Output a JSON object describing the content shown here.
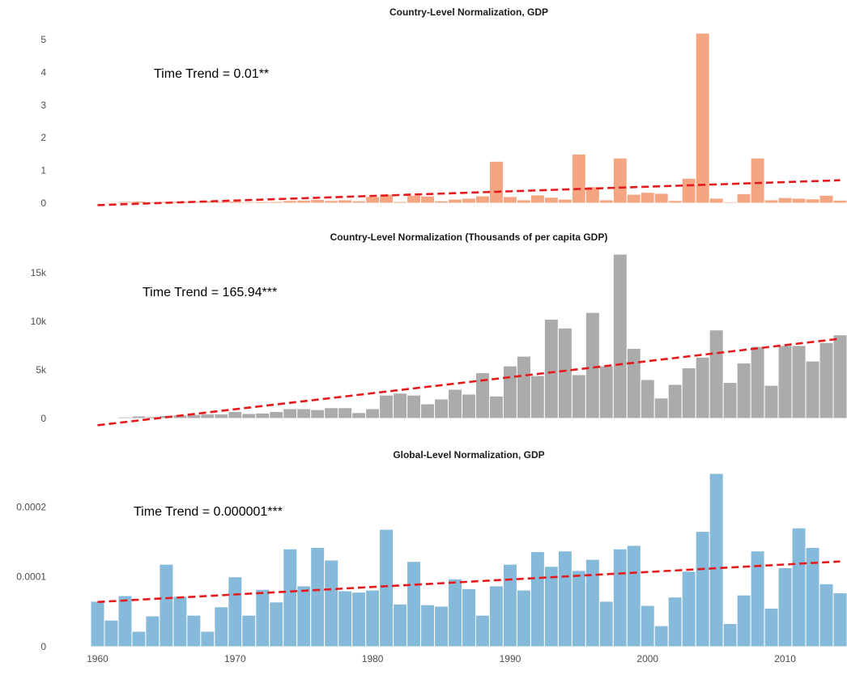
{
  "chart_data": [
    {
      "type": "bar",
      "title": "Country-Level Normalization, GDP",
      "xlabel": "",
      "ylabel": "",
      "annotation": "Time Trend = 0.01**",
      "bar_color": "#F4A582",
      "trend_color": "#E41A1C",
      "x": [
        1960,
        1961,
        1962,
        1963,
        1964,
        1965,
        1966,
        1967,
        1968,
        1969,
        1970,
        1971,
        1972,
        1973,
        1974,
        1975,
        1976,
        1977,
        1978,
        1979,
        1980,
        1981,
        1982,
        1983,
        1984,
        1985,
        1986,
        1987,
        1988,
        1989,
        1990,
        1991,
        1992,
        1993,
        1994,
        1995,
        1996,
        1997,
        1998,
        1999,
        2000,
        2001,
        2002,
        2003,
        2004,
        2005,
        2006,
        2007,
        2008,
        2009,
        2010,
        2011,
        2012,
        2013,
        2014
      ],
      "values": [
        0.02,
        0.03,
        0.05,
        0.06,
        0.04,
        0.05,
        0.06,
        0.05,
        0.07,
        0.05,
        0.06,
        0.04,
        0.05,
        0.05,
        0.08,
        0.09,
        0.11,
        0.08,
        0.1,
        0.07,
        0.2,
        0.27,
        0.05,
        0.24,
        0.22,
        0.07,
        0.12,
        0.15,
        0.22,
        1.28,
        0.2,
        0.1,
        0.25,
        0.18,
        0.12,
        1.5,
        0.5,
        0.1,
        1.38,
        0.27,
        0.33,
        0.3,
        0.08,
        0.76,
        5.2,
        0.15,
        0.04,
        0.29,
        1.38,
        0.1,
        0.17,
        0.15,
        0.13,
        0.24,
        0.09
      ],
      "trend": {
        "x": [
          1960,
          2014
        ],
        "y": [
          -0.06,
          0.7
        ]
      },
      "y_ticks": [
        0,
        1,
        2,
        3,
        4,
        5
      ],
      "y_tick_labels": [
        "0",
        "1",
        "2",
        "3",
        "4",
        "5"
      ],
      "ylim": [
        0,
        5.2
      ],
      "x_ticks": [
        1960,
        1970,
        1980,
        1990,
        2000,
        2010
      ],
      "x_tick_labels": [],
      "grid": false
    },
    {
      "type": "bar",
      "title": "Country-Level Normalization (Thousands of per capita GDP)",
      "xlabel": "",
      "ylabel": "",
      "annotation": "Time Trend = 165.94***",
      "bar_color": "#ABABAB",
      "trend_color": "#E41A1C",
      "x": [
        1960,
        1961,
        1962,
        1963,
        1964,
        1965,
        1966,
        1967,
        1968,
        1969,
        1970,
        1971,
        1972,
        1973,
        1974,
        1975,
        1976,
        1977,
        1978,
        1979,
        1980,
        1981,
        1982,
        1983,
        1984,
        1985,
        1986,
        1987,
        1988,
        1989,
        1990,
        1991,
        1992,
        1993,
        1994,
        1995,
        1996,
        1997,
        1998,
        1999,
        2000,
        2001,
        2002,
        2003,
        2004,
        2005,
        2006,
        2007,
        2008,
        2009,
        2010,
        2011,
        2012,
        2013,
        2014
      ],
      "values": [
        50,
        80,
        150,
        250,
        180,
        300,
        350,
        400,
        450,
        450,
        700,
        500,
        550,
        700,
        1000,
        1000,
        900,
        1100,
        1100,
        600,
        1000,
        2400,
        2600,
        2400,
        1500,
        2000,
        3000,
        2500,
        4700,
        2300,
        5400,
        6400,
        4400,
        10200,
        9300,
        4500,
        10900,
        5400,
        16900,
        7200,
        4000,
        2100,
        3500,
        5200,
        6300,
        9100,
        3700,
        5700,
        7400,
        3400,
        7500,
        7500,
        5900,
        7800,
        8600
      ],
      "trend": {
        "x": [
          1960,
          2014
        ],
        "y": [
          -700,
          8200
        ]
      },
      "y_ticks": [
        0,
        5000,
        10000,
        15000
      ],
      "y_tick_labels": [
        "0",
        "5k",
        "10k",
        "15k"
      ],
      "ylim": [
        0,
        16900
      ],
      "x_ticks": [
        1960,
        1970,
        1980,
        1990,
        2000,
        2010
      ],
      "x_tick_labels": [],
      "grid": false
    },
    {
      "type": "bar",
      "title": "Global-Level Normalization, GDP",
      "xlabel": "",
      "ylabel": "",
      "annotation": "Time Trend = 0.000001***",
      "bar_color": "#86BADA",
      "trend_color": "#E41A1C",
      "x": [
        1960,
        1961,
        1962,
        1963,
        1964,
        1965,
        1966,
        1967,
        1968,
        1969,
        1970,
        1971,
        1972,
        1973,
        1974,
        1975,
        1976,
        1977,
        1978,
        1979,
        1980,
        1981,
        1982,
        1983,
        1984,
        1985,
        1986,
        1987,
        1988,
        1989,
        1990,
        1991,
        1992,
        1993,
        1994,
        1995,
        1996,
        1997,
        1998,
        1999,
        2000,
        2001,
        2002,
        2003,
        2004,
        2005,
        2006,
        2007,
        2008,
        2009,
        2010,
        2011,
        2012,
        2013,
        2014
      ],
      "values": [
        6.5e-05,
        3.8e-05,
        7.3e-05,
        2.2e-05,
        4.4e-05,
        0.000118,
        7.2e-05,
        4.5e-05,
        2.2e-05,
        5.7e-05,
        0.0001,
        4.5e-05,
        8.2e-05,
        6.4e-05,
        0.00014,
        8.7e-05,
        0.000142,
        0.000124,
        8e-05,
        7.8e-05,
        8.1e-05,
        0.000168,
        6.1e-05,
        0.000122,
        6e-05,
        5.8e-05,
        9.7e-05,
        8.3e-05,
        4.5e-05,
        8.7e-05,
        0.000118,
        8.1e-05,
        0.000136,
        0.000115,
        0.000137,
        0.000109,
        0.000125,
        6.5e-05,
        0.00014,
        0.000145,
        5.9e-05,
        3e-05,
        7.1e-05,
        0.000108,
        0.000165,
        0.000248,
        3.3e-05,
        7.4e-05,
        0.000137,
        5.5e-05,
        0.000113,
        0.00017,
        0.000142,
        9e-05,
        7.7e-05
      ],
      "trend": {
        "x": [
          1960,
          2014
        ],
        "y": [
          6.4e-05,
          0.000122
        ]
      },
      "y_ticks": [
        0,
        0.0001,
        0.0002
      ],
      "y_tick_labels": [
        "0",
        "0.0001",
        "0.0002"
      ],
      "ylim": [
        0,
        0.000248
      ],
      "x_ticks": [
        1960,
        1970,
        1980,
        1990,
        2000,
        2010
      ],
      "x_tick_labels": [
        "1960",
        "1970",
        "1980",
        "1990",
        "2000",
        "2010"
      ],
      "grid": false
    }
  ]
}
